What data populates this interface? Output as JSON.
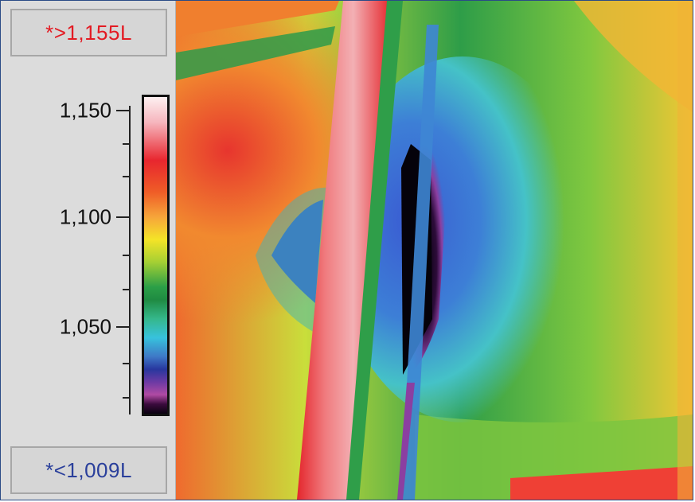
{
  "scale": {
    "max_label": "*>1,155L",
    "min_label": "*<1,009L",
    "ticks": [
      "1,150",
      "1,100",
      "1,050"
    ]
  },
  "colors": {
    "max_label_color": "#e31b23",
    "min_label_color": "#2a3f9b",
    "frame_border": "#2a4b86"
  },
  "image": {
    "description_icon": "thermal-image-icon"
  }
}
